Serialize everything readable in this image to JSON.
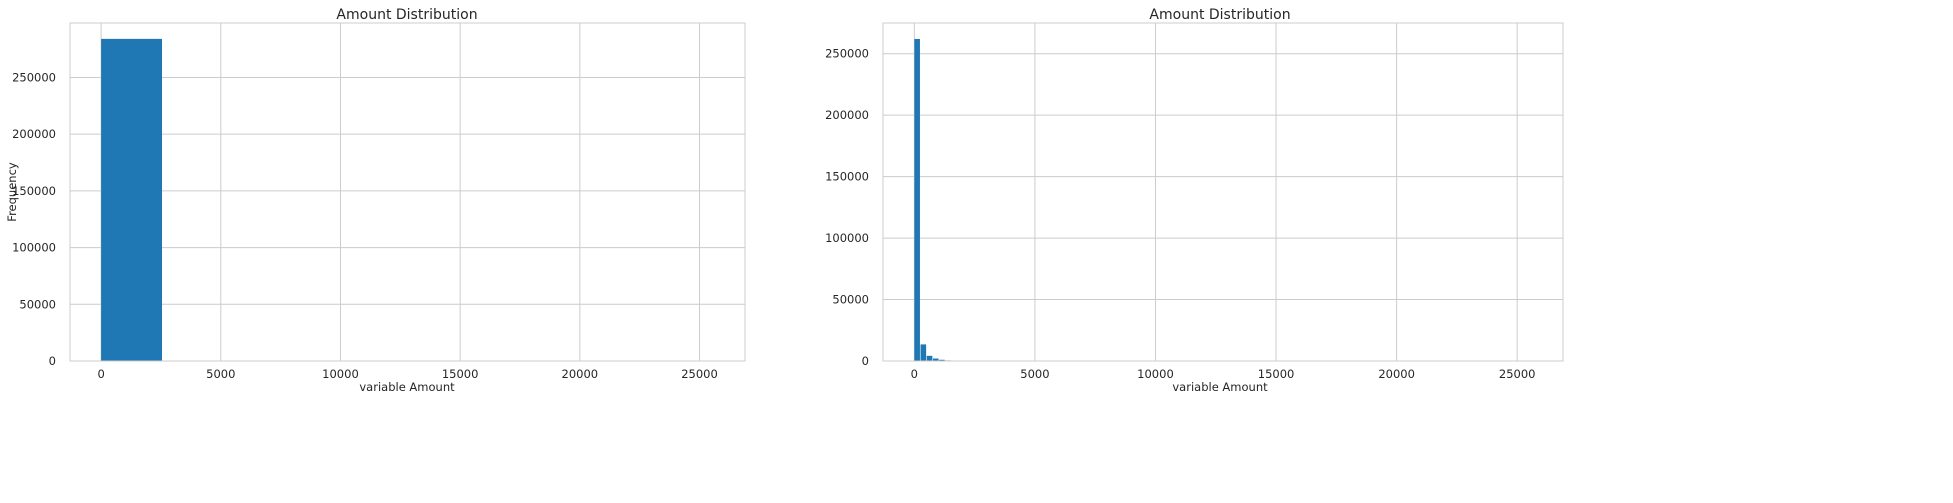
{
  "chart_data": [
    {
      "type": "bar",
      "title": "Amount Distribution",
      "xlabel": "variable Amount",
      "ylabel": "Frequency",
      "xlim": [
        -1300,
        26900
      ],
      "ylim": [
        0,
        298000
      ],
      "xticks": [
        0,
        5000,
        10000,
        15000,
        20000,
        25000
      ],
      "yticks": [
        0,
        50000,
        100000,
        150000,
        200000,
        250000
      ],
      "grid": true,
      "bar_color": "#1f77b4",
      "bins": [
        {
          "x0": 0,
          "x1": 2569,
          "count": 284000
        }
      ]
    },
    {
      "type": "bar",
      "title": "Amount Distribution",
      "xlabel": "variable Amount",
      "ylabel": "",
      "xlim": [
        -1300,
        26900
      ],
      "ylim": [
        0,
        275000
      ],
      "xticks": [
        0,
        5000,
        10000,
        15000,
        20000,
        25000
      ],
      "yticks": [
        0,
        50000,
        100000,
        150000,
        200000,
        250000
      ],
      "grid": true,
      "bar_color": "#1f77b4",
      "bins": [
        {
          "x0": 0,
          "x1": 257,
          "count": 262000
        },
        {
          "x0": 257,
          "x1": 514,
          "count": 13500
        },
        {
          "x0": 514,
          "x1": 771,
          "count": 4200
        },
        {
          "x0": 771,
          "x1": 1028,
          "count": 2000
        },
        {
          "x0": 1028,
          "x1": 1285,
          "count": 1000
        },
        {
          "x0": 1285,
          "x1": 1542,
          "count": 500
        },
        {
          "x0": 1542,
          "x1": 1799,
          "count": 250
        },
        {
          "x0": 1799,
          "x1": 2056,
          "count": 130
        },
        {
          "x0": 2056,
          "x1": 2313,
          "count": 70
        }
      ]
    }
  ]
}
